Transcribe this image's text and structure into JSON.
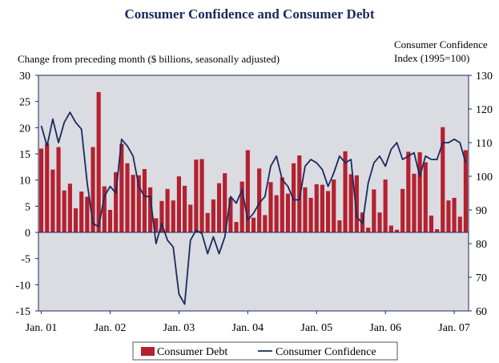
{
  "chart_data": {
    "type": "bar+line",
    "title": "Consumer Confidence and Consumer Debt",
    "left_axis_label": "Change from preceding month ($ billions, seasonally adjusted)",
    "right_axis_label_line1": "Consumer Confidence",
    "right_axis_label_line2": "Index (1995=100)",
    "left_ylim": [
      -15,
      30
    ],
    "left_ticks": [
      "30",
      "25",
      "20",
      "15",
      "10",
      "5",
      "0",
      "-5",
      "-10",
      "-15"
    ],
    "right_ylim": [
      60,
      130
    ],
    "right_ticks": [
      "130",
      "120",
      "110",
      "100",
      "90",
      "80",
      "70",
      "60"
    ],
    "x_tick_labels": [
      "Jan. 01",
      "Jan. 02",
      "Jan. 03",
      "Jan. 04",
      "Jan. 05",
      "Jan. 06",
      "Jan. 07"
    ],
    "grid": false,
    "legend_position": "bottom-center",
    "series": [
      {
        "name": "Consumer Debt",
        "kind": "bar",
        "axis": "left",
        "color": "#b5202e",
        "values": [
          16,
          17,
          12,
          16.3,
          8,
          9.3,
          4.6,
          7.8,
          6.8,
          16.3,
          26.8,
          8.8,
          4.3,
          11.5,
          16.9,
          13.2,
          11,
          10.9,
          12.1,
          8.6,
          2.7,
          6,
          8.3,
          6.1,
          10.7,
          8.9,
          5.3,
          13.9,
          14,
          3.7,
          6.3,
          9.4,
          11.3,
          6.6,
          2,
          9.7,
          15.7,
          2.8,
          12.2,
          3.3,
          9.6,
          7.1,
          10.5,
          7.4,
          13.2,
          14.7,
          8.6,
          6.6,
          9.2,
          9.1,
          7.9,
          10.1,
          2.3,
          15.5,
          11.1,
          10.9,
          3.8,
          0.9,
          8.2,
          3.8,
          10.1,
          1.3,
          0.5,
          8.3,
          15.4,
          11.2,
          15.3,
          13.4,
          3.2,
          0.6,
          20.1,
          6.1,
          6.6,
          3,
          15.7
        ]
      },
      {
        "name": "Consumer Confidence",
        "kind": "line",
        "axis": "right",
        "color": "#1a2a5e",
        "values": [
          115,
          109,
          117,
          110,
          116,
          119,
          116,
          114,
          98,
          86,
          85,
          94,
          97,
          95,
          111,
          109,
          106,
          97,
          94,
          94,
          80,
          86,
          81,
          79,
          65,
          62,
          81,
          84,
          83,
          77,
          82,
          77,
          82,
          94,
          92,
          96,
          87,
          89,
          92,
          94,
          103,
          106,
          99,
          97,
          93,
          93,
          103,
          105,
          104,
          102,
          97,
          101,
          106,
          104,
          105,
          88,
          86,
          98,
          104,
          106,
          103,
          108,
          110,
          105,
          106,
          107,
          100,
          106,
          105,
          105,
          110,
          110,
          111,
          110,
          104
        ]
      }
    ]
  }
}
